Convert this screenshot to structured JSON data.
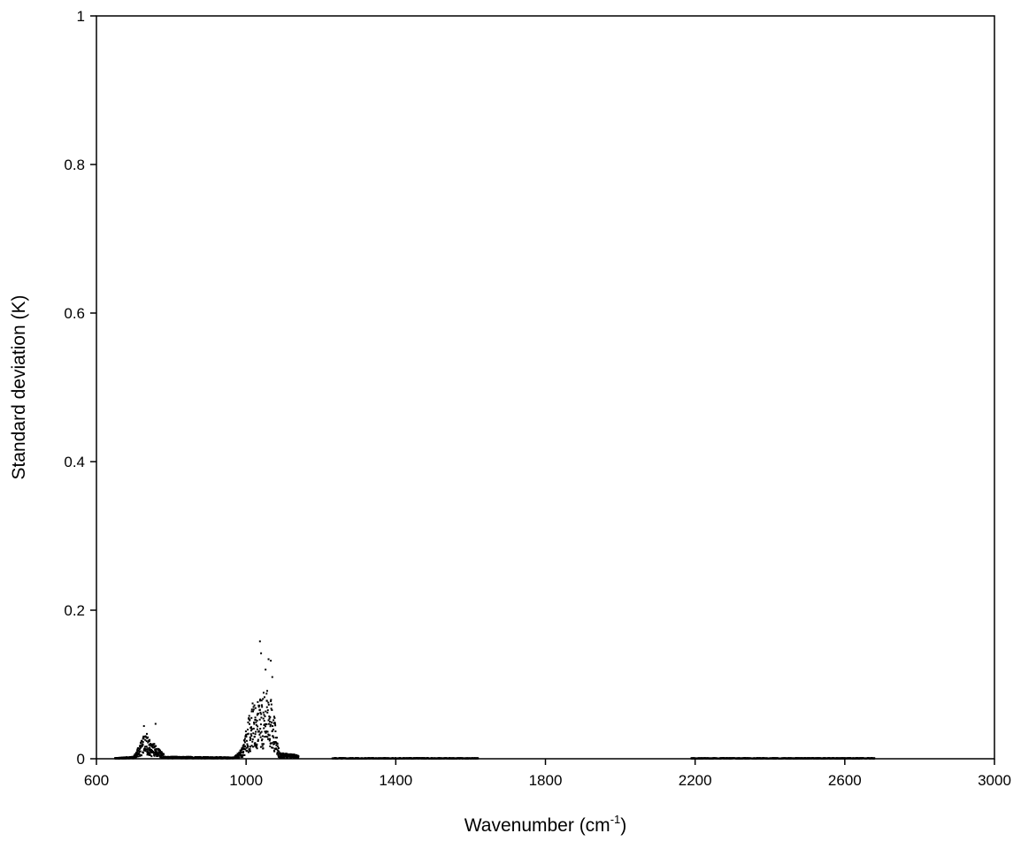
{
  "chart_data": {
    "type": "scatter",
    "xlabel": "Wavenumber (cm",
    "xlabel_superscript": "-1",
    "xlabel_suffix": ")",
    "ylabel": "Standard deviation (K)",
    "xlim": [
      600,
      3000
    ],
    "ylim": [
      0,
      1
    ],
    "x_ticks": [
      600,
      1000,
      1400,
      1800,
      2200,
      2600,
      3000
    ],
    "x_tick_labels": [
      "600",
      "1000",
      "1400",
      "1800",
      "2200",
      "2600",
      "3000"
    ],
    "y_ticks": [
      0,
      0.2,
      0.4,
      0.6,
      0.8,
      1
    ],
    "y_tick_labels": [
      "0",
      "0.2",
      "0.4",
      "0.6",
      "0.8",
      "1"
    ],
    "grid": false,
    "marker_color": "#000000",
    "segments": [
      {
        "range": [
          650,
          700
        ],
        "envelope": [
          [
            650,
            0.001
          ],
          [
            700,
            0.003
          ]
        ]
      },
      {
        "range": [
          700,
          780
        ],
        "envelope": [
          [
            700,
            0.005
          ],
          [
            715,
            0.018
          ],
          [
            725,
            0.03
          ],
          [
            735,
            0.035
          ],
          [
            745,
            0.022
          ],
          [
            755,
            0.02
          ],
          [
            765,
            0.015
          ],
          [
            780,
            0.006
          ]
        ]
      },
      {
        "range": [
          780,
          970
        ],
        "envelope": [
          [
            780,
            0.003
          ],
          [
            970,
            0.002
          ]
        ]
      },
      {
        "range": [
          970,
          1090
        ],
        "envelope": [
          [
            970,
            0.003
          ],
          [
            990,
            0.015
          ],
          [
            1005,
            0.05
          ],
          [
            1015,
            0.075
          ],
          [
            1025,
            0.08
          ],
          [
            1035,
            0.085
          ],
          [
            1045,
            0.09
          ],
          [
            1055,
            0.1
          ],
          [
            1065,
            0.085
          ],
          [
            1075,
            0.06
          ],
          [
            1085,
            0.02
          ],
          [
            1090,
            0.01
          ]
        ]
      },
      {
        "range": [
          1090,
          1140
        ],
        "envelope": [
          [
            1090,
            0.008
          ],
          [
            1140,
            0.005
          ]
        ]
      },
      {
        "range": [
          1230,
          1620
        ],
        "envelope": [
          [
            1230,
            0.001
          ],
          [
            1620,
            0.001
          ]
        ]
      },
      {
        "range": [
          2190,
          2680
        ],
        "envelope": [
          [
            2190,
            0.001
          ],
          [
            2680,
            0.001
          ]
        ]
      }
    ],
    "outliers": [
      [
        727,
        0.044
      ],
      [
        758,
        0.047
      ],
      [
        1037,
        0.158
      ],
      [
        1060,
        0.134
      ],
      [
        1066,
        0.132
      ],
      [
        1040,
        0.142
      ],
      [
        1052,
        0.12
      ],
      [
        1070,
        0.11
      ]
    ]
  }
}
